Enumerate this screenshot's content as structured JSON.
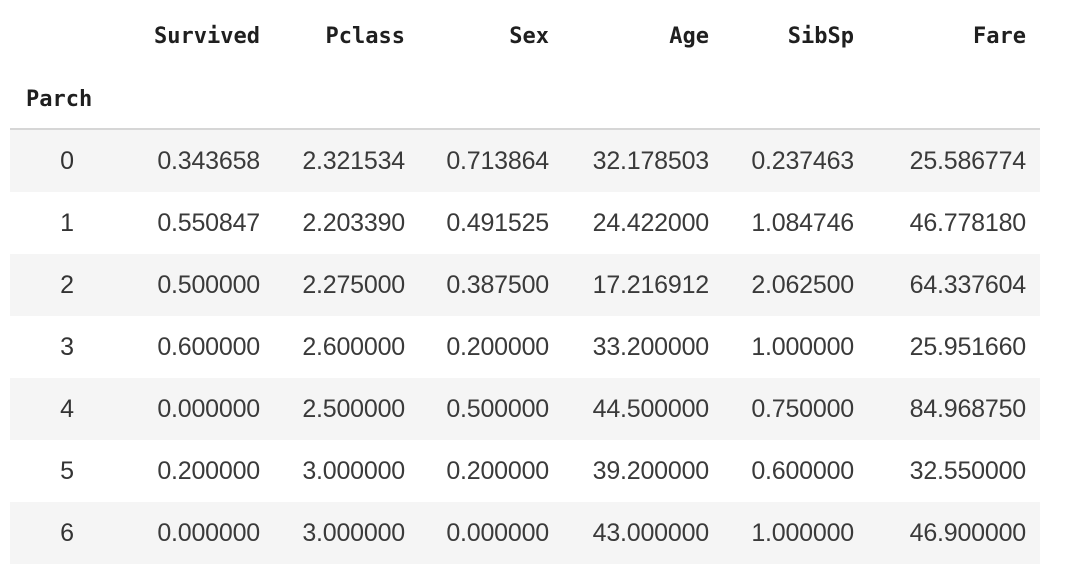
{
  "table": {
    "columns": [
      "Survived",
      "Pclass",
      "Sex",
      "Age",
      "SibSp",
      "Fare"
    ],
    "index_name": "Parch",
    "rows": [
      {
        "index": "0",
        "values": [
          "0.343658",
          "2.321534",
          "0.713864",
          "32.178503",
          "0.237463",
          "25.586774"
        ]
      },
      {
        "index": "1",
        "values": [
          "0.550847",
          "2.203390",
          "0.491525",
          "24.422000",
          "1.084746",
          "46.778180"
        ]
      },
      {
        "index": "2",
        "values": [
          "0.500000",
          "2.275000",
          "0.387500",
          "17.216912",
          "2.062500",
          "64.337604"
        ]
      },
      {
        "index": "3",
        "values": [
          "0.600000",
          "2.600000",
          "0.200000",
          "33.200000",
          "1.000000",
          "25.951660"
        ]
      },
      {
        "index": "4",
        "values": [
          "0.000000",
          "2.500000",
          "0.500000",
          "44.500000",
          "0.750000",
          "84.968750"
        ]
      },
      {
        "index": "5",
        "values": [
          "0.200000",
          "3.000000",
          "0.200000",
          "39.200000",
          "0.600000",
          "32.550000"
        ]
      },
      {
        "index": "6",
        "values": [
          "0.000000",
          "3.000000",
          "0.000000",
          "43.000000",
          "1.000000",
          "46.900000"
        ]
      }
    ]
  }
}
